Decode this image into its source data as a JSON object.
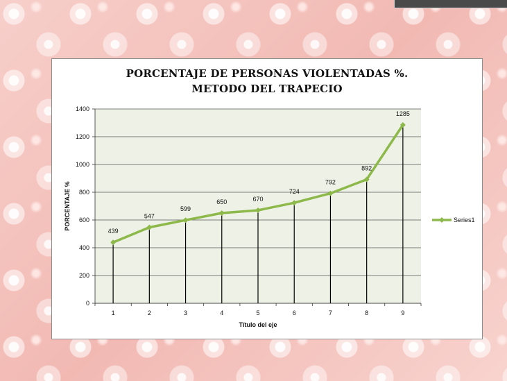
{
  "chart_data": {
    "type": "line",
    "title_lines": [
      "PORCENTAJE DE PERSONAS VIOLENTADAS %.",
      "METODO DEL TRAPECIO"
    ],
    "xlabel": "Título del eje",
    "ylabel": "PORCENTAJE %",
    "categories": [
      "1",
      "2",
      "3",
      "4",
      "5",
      "6",
      "7",
      "8",
      "9"
    ],
    "series": [
      {
        "name": "Series1",
        "values": [
          439,
          547,
          599,
          650,
          670,
          724,
          792,
          892,
          1285
        ],
        "color": "#8db84a"
      }
    ],
    "data_labels": [
      "439",
      "547",
      "599",
      "650",
      "670",
      "724",
      "792",
      "892",
      "1285"
    ],
    "ylim": [
      0,
      1400
    ],
    "yticks": [
      0,
      200,
      400,
      600,
      800,
      1000,
      1200,
      1400
    ],
    "ytick_labels": [
      "0",
      "200",
      "400",
      "600",
      "800",
      "1000",
      "1200",
      "1400"
    ],
    "grid": "horizontal",
    "drop_lines": true,
    "legend_position": "right",
    "plot_background": "#eef2e6",
    "gridline_color": "#555555"
  }
}
